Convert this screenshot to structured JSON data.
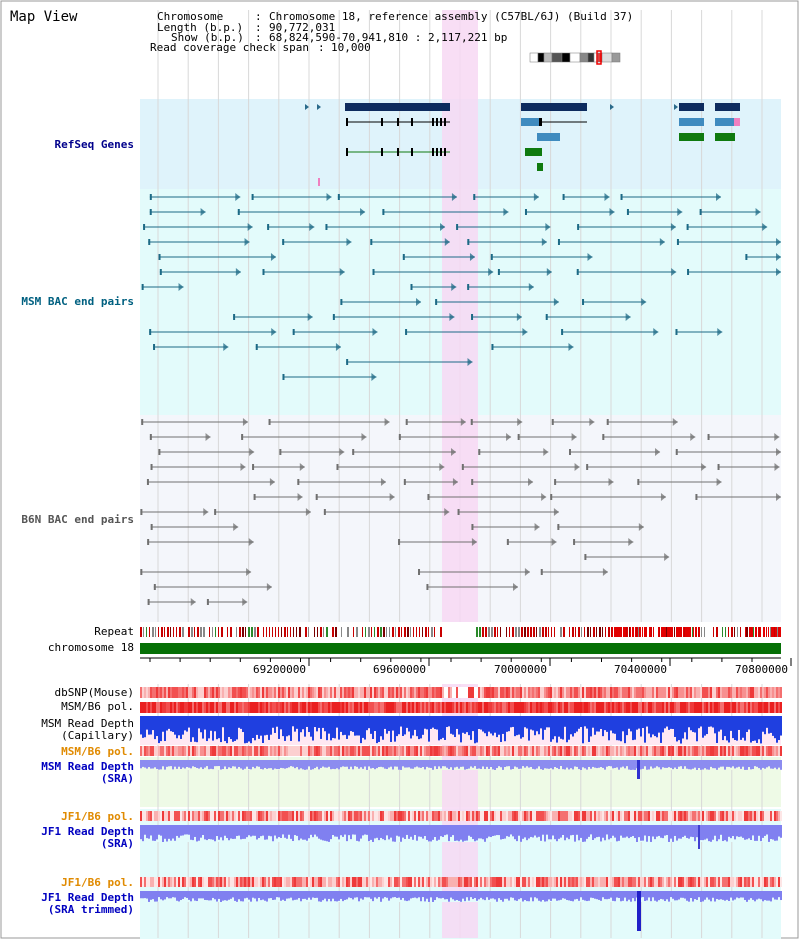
{
  "view": {
    "title": "Map View"
  },
  "info": {
    "chromosome_key": "Chromosome",
    "chromosome_val": "Chromosome 18, reference assembly (C57BL/6J) (Build 37)",
    "length_key": "Length (b.p.)",
    "length_val": "90,772,031",
    "show_key": "Show (b.p.)",
    "show_val": "68,824,590-70,941,810 : 2,117,221 bp",
    "span_key": "Read coverage check span",
    "span_val": "10,000"
  },
  "tracks": {
    "refseq": "RefSeq Genes",
    "msm_bac": "MSM BAC end pairs",
    "b6n_bac": "B6N BAC end pairs",
    "repeat": "Repeat",
    "chrom": "chromosome 18",
    "dbsnp": "dbSNP(Mouse)",
    "msm_pol1": "MSM/B6 pol.",
    "msm_depth_cap_1": "MSM Read Depth",
    "msm_depth_cap_2": "(Capillary)",
    "msm_pol2": "MSM/B6 pol.",
    "msm_depth_sra_1": "MSM Read Depth",
    "msm_depth_sra_2": "(SRA)",
    "jf1_pol1": "JF1/B6 pol.",
    "jf1_depth_1": "JF1 Read Depth",
    "jf1_depth_2": "(SRA)",
    "jf1_pol2": "JF1/B6 pol.",
    "jf1_trim_1": "JF1 Read Depth",
    "jf1_trim_2": "(SRA trimmed)"
  },
  "axis": {
    "ticks": [
      "69200000",
      "69600000",
      "70000000",
      "70400000",
      "70800000"
    ]
  },
  "colors": {
    "refseq_bg": "#dff3fb",
    "msm_bg": "#e3fbfb",
    "b6n_bg": "#f4f6fb",
    "highlight": "#f7d8f3",
    "msm_label": "#006080",
    "refseq_label": "#00008b",
    "pol_label": "#e08a00",
    "depth_label": "#0000c0",
    "chrom_green": "#067006"
  }
}
